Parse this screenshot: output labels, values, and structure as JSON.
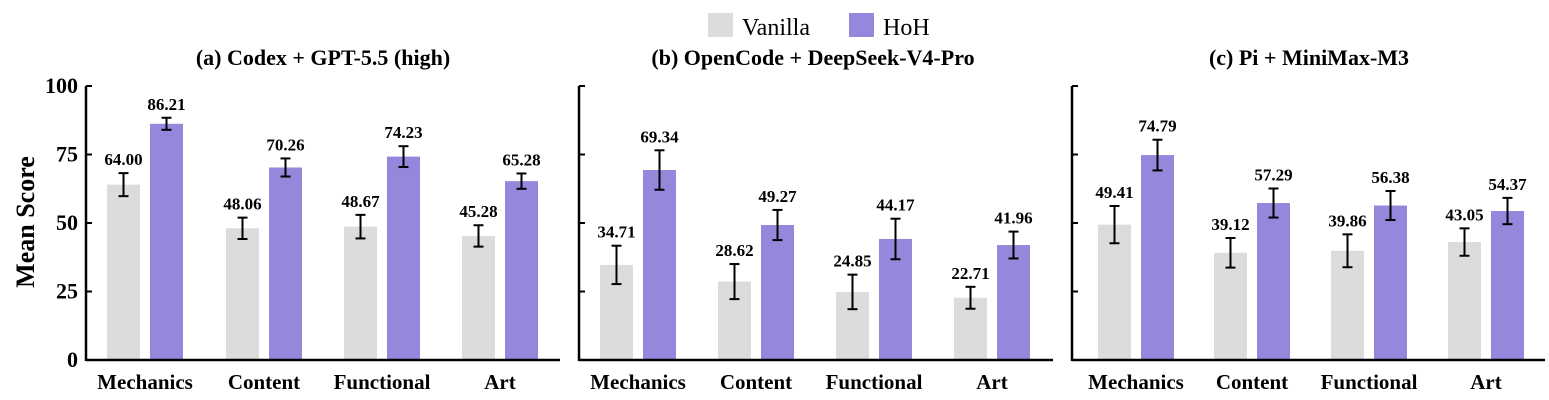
{
  "legend": {
    "items": [
      {
        "name": "Vanilla",
        "color": "#dcdcdf"
      },
      {
        "name": "HoH",
        "color": "#9388dc"
      }
    ]
  },
  "shared": {
    "ylabel": "Mean Score",
    "ylim": [
      0,
      100
    ],
    "yticks": [
      0,
      25,
      50,
      75,
      100
    ],
    "categories": [
      "Mechanics",
      "Content",
      "Functional",
      "Art"
    ]
  },
  "chart_data": [
    {
      "type": "bar",
      "title": "(a) Codex + GPT-5.5 (high)",
      "categories": [
        "Mechanics",
        "Content",
        "Functional",
        "Art"
      ],
      "ylabel": "Mean Score",
      "ylim": [
        0,
        100
      ],
      "series": [
        {
          "name": "Vanilla",
          "values": [
            64.0,
            48.06,
            48.67,
            45.28
          ],
          "errors": [
            4.2,
            3.9,
            4.3,
            3.9
          ]
        },
        {
          "name": "HoH",
          "values": [
            86.21,
            70.26,
            74.23,
            65.28
          ],
          "errors": [
            2.2,
            3.3,
            3.8,
            2.8
          ]
        }
      ],
      "value_labels": {
        "Vanilla": [
          "64.00",
          "48.06",
          "48.67",
          "45.28"
        ],
        "HoH": [
          "86.21",
          "70.26",
          "74.23",
          "65.28"
        ]
      }
    },
    {
      "type": "bar",
      "title": "(b) OpenCode + DeepSeek-V4-Pro",
      "categories": [
        "Mechanics",
        "Content",
        "Functional",
        "Art"
      ],
      "ylim": [
        0,
        100
      ],
      "series": [
        {
          "name": "Vanilla",
          "values": [
            34.71,
            28.62,
            24.85,
            22.71
          ],
          "errors": [
            7.0,
            6.4,
            6.3,
            4.0
          ]
        },
        {
          "name": "HoH",
          "values": [
            69.34,
            49.27,
            44.17,
            41.96
          ],
          "errors": [
            7.2,
            5.5,
            7.4,
            4.9
          ]
        }
      ],
      "value_labels": {
        "Vanilla": [
          "34.71",
          "28.62",
          "24.85",
          "22.71"
        ],
        "HoH": [
          "69.34",
          "49.27",
          "44.17",
          "41.96"
        ]
      }
    },
    {
      "type": "bar",
      "title": "(c) Pi + MiniMax-M3",
      "categories": [
        "Mechanics",
        "Content",
        "Functional",
        "Art"
      ],
      "ylim": [
        0,
        100
      ],
      "series": [
        {
          "name": "Vanilla",
          "values": [
            49.41,
            39.12,
            39.86,
            43.05
          ],
          "errors": [
            6.8,
            5.4,
            6.0,
            5.0
          ]
        },
        {
          "name": "HoH",
          "values": [
            74.79,
            57.29,
            56.38,
            54.37
          ],
          "errors": [
            5.6,
            5.3,
            5.3,
            4.8
          ]
        }
      ],
      "value_labels": {
        "Vanilla": [
          "49.41",
          "39.12",
          "39.86",
          "43.05"
        ],
        "HoH": [
          "74.79",
          "57.29",
          "56.38",
          "54.37"
        ]
      }
    }
  ]
}
